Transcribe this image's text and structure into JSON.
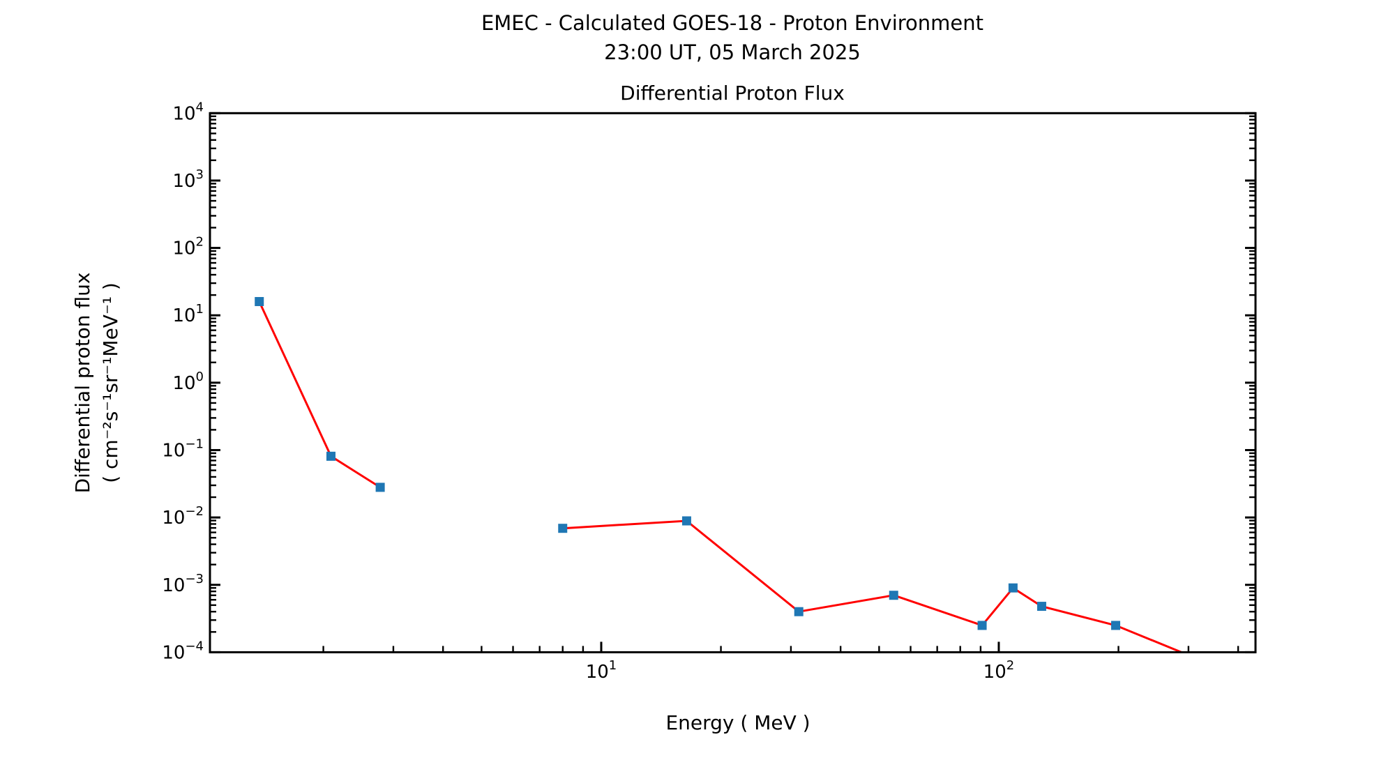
{
  "page": {
    "title_line1": "EMEC - Calculated GOES-18 - Proton Environment",
    "title_line2": "23:00 UT, 05 March 2025"
  },
  "chart_data": {
    "type": "line",
    "title": "Differential Proton Flux",
    "xlabel": "Energy ( MeV )",
    "ylabel": "Differential proton flux",
    "ylabel_units": "( cm⁻²s⁻¹sr⁻¹MeV⁻¹ )",
    "x_scale": "log",
    "y_scale": "log",
    "xlim": [
      1.037,
      442.3
    ],
    "ylim": [
      0.0001,
      10000
    ],
    "grid": false,
    "legend": "none",
    "tick_direction": "in",
    "x_major_ticks": [
      10,
      100
    ],
    "y_major_tick_exponents": [
      4,
      3,
      2,
      1,
      0,
      -1,
      -2,
      -3,
      -4
    ],
    "colors": {
      "line": "#ff0000",
      "marker": "#1f77b4",
      "axis": "#000000",
      "background": "#ffffff"
    },
    "marker_shape": "square",
    "series": [
      {
        "name": "Differential Proton Flux",
        "x": [
          1.38,
          2.09,
          2.78,
          8.0,
          16.4,
          31.4,
          54.4,
          90.8,
          108.6,
          128.2,
          196.8,
          334
        ],
        "y": [
          16,
          0.081,
          0.028,
          0.0069,
          0.0089,
          0.0004,
          0.0007,
          0.00025,
          0.0009,
          0.00048,
          0.00025,
          7e-05
        ],
        "line_segments": [
          [
            0,
            1,
            2
          ],
          [
            3,
            4,
            5,
            6,
            7,
            8,
            9,
            10,
            11
          ]
        ]
      }
    ]
  }
}
